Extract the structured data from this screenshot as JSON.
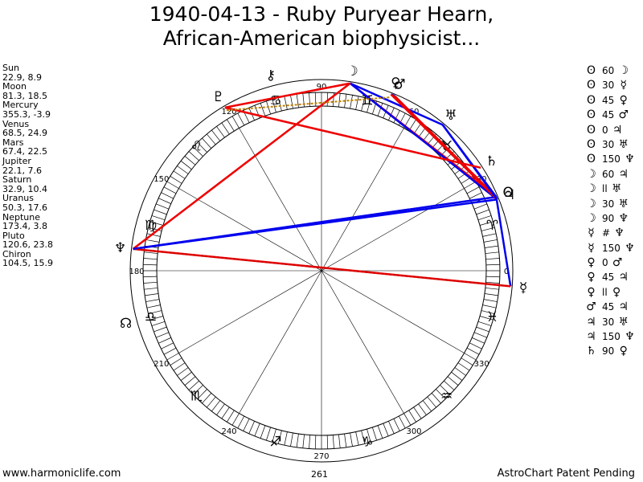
{
  "title_line1": "1940-04-13 - Ruby Puryear Hearn,",
  "title_line2": "African-American biophysicist...",
  "positions": [
    {
      "name": "Sun",
      "values": "22.9, 8.9"
    },
    {
      "name": "Moon",
      "values": "81.3, 18.5"
    },
    {
      "name": "Mercury",
      "values": "355.3, -3.9"
    },
    {
      "name": "Venus",
      "values": "68.5, 24.9"
    },
    {
      "name": "Mars",
      "values": "67.4, 22.5"
    },
    {
      "name": "Jupiter",
      "values": "22.1, 7.6"
    },
    {
      "name": "Saturn",
      "values": "32.9, 10.4"
    },
    {
      "name": "Uranus",
      "values": "50.3, 17.6"
    },
    {
      "name": "Neptune",
      "values": "173.4, 3.8"
    },
    {
      "name": "Pluto",
      "values": "120.6, 23.8"
    },
    {
      "name": "Chiron",
      "values": "104.5, 15.9"
    }
  ],
  "aspects": [
    {
      "p1": "ʘ",
      "angle": "60",
      "p2": "☽"
    },
    {
      "p1": "ʘ",
      "angle": "30",
      "p2": "☿"
    },
    {
      "p1": "ʘ",
      "angle": "45",
      "p2": "♀"
    },
    {
      "p1": "ʘ",
      "angle": "45",
      "p2": "♂"
    },
    {
      "p1": "ʘ",
      "angle": "0",
      "p2": "♃"
    },
    {
      "p1": "ʘ",
      "angle": "30",
      "p2": "♅"
    },
    {
      "p1": "ʘ",
      "angle": "150",
      "p2": "♆"
    },
    {
      "p1": "☽",
      "angle": "60",
      "p2": "♃"
    },
    {
      "p1": "☽",
      "angle": "ll",
      "p2": "♅"
    },
    {
      "p1": "☽",
      "angle": "30",
      "p2": "♅"
    },
    {
      "p1": "☽",
      "angle": "90",
      "p2": "♆"
    },
    {
      "p1": "☿",
      "angle": "#",
      "p2": "♆"
    },
    {
      "p1": "☿",
      "angle": "150",
      "p2": "♆"
    },
    {
      "p1": "♀",
      "angle": "0",
      "p2": "♂"
    },
    {
      "p1": "♀",
      "angle": "45",
      "p2": "♃"
    },
    {
      "p1": "♀",
      "angle": "ll",
      "p2": "♀"
    },
    {
      "p1": "♂",
      "angle": "45",
      "p2": "♃"
    },
    {
      "p1": "♃",
      "angle": "30",
      "p2": "♅"
    },
    {
      "p1": "♃",
      "angle": "150",
      "p2": "♆"
    },
    {
      "p1": "♄",
      "angle": "90",
      "p2": "♀"
    }
  ],
  "wheel": {
    "degree_labels": [
      {
        "text": "0",
        "deg": 0
      },
      {
        "text": "30",
        "deg": 30
      },
      {
        "text": "60",
        "deg": 60
      },
      {
        "text": "90",
        "deg": 90
      },
      {
        "text": "120",
        "deg": 120
      },
      {
        "text": "150",
        "deg": 150
      },
      {
        "text": "180",
        "deg": 180
      },
      {
        "text": "210",
        "deg": 210
      },
      {
        "text": "240",
        "deg": 240
      },
      {
        "text": "270",
        "deg": 270
      },
      {
        "text": "300",
        "deg": 300
      },
      {
        "text": "330",
        "deg": 330
      }
    ],
    "sign_glyphs": [
      {
        "glyph": "♈",
        "deg": 15
      },
      {
        "glyph": "♉",
        "deg": 45
      },
      {
        "glyph": "♊",
        "deg": 75
      },
      {
        "glyph": "♋",
        "deg": 105
      },
      {
        "glyph": "♌",
        "deg": 135
      },
      {
        "glyph": "♍",
        "deg": 165
      },
      {
        "glyph": "♎",
        "deg": 195
      },
      {
        "glyph": "♏",
        "deg": 225
      },
      {
        "glyph": "♐",
        "deg": 255
      },
      {
        "glyph": "♑",
        "deg": 285
      },
      {
        "glyph": "♒",
        "deg": 315
      },
      {
        "glyph": "♓",
        "deg": 345
      }
    ],
    "planets": [
      {
        "name": "Sun",
        "glyph": "ʘ",
        "lon": 22.9
      },
      {
        "name": "Moon",
        "glyph": "☽",
        "lon": 81.3
      },
      {
        "name": "Mercury",
        "glyph": "☿",
        "lon": 355.3
      },
      {
        "name": "Venus",
        "glyph": "♀",
        "lon": 68.5
      },
      {
        "name": "Mars",
        "glyph": "♂",
        "lon": 67.4
      },
      {
        "name": "Jupiter",
        "glyph": "♃",
        "lon": 22.1
      },
      {
        "name": "Saturn",
        "glyph": "♄",
        "lon": 32.9
      },
      {
        "name": "Uranus",
        "glyph": "♅",
        "lon": 50.3
      },
      {
        "name": "Neptune",
        "glyph": "♆",
        "lon": 173.4
      },
      {
        "name": "Pluto",
        "glyph": "♇",
        "lon": 120.6
      },
      {
        "name": "Chiron",
        "glyph": "⚷",
        "lon": 104.5
      },
      {
        "name": "Node",
        "glyph": "☊",
        "lon": 195
      }
    ],
    "aspect_lines": [
      {
        "from": "Sun",
        "to": "Moon",
        "color": "#ee0000"
      },
      {
        "from": "Sun",
        "to": "Mercury",
        "color": "#0000ee"
      },
      {
        "from": "Sun",
        "to": "Venus",
        "color": "#ee0000"
      },
      {
        "from": "Sun",
        "to": "Mars",
        "color": "#ee0000"
      },
      {
        "from": "Sun",
        "to": "Uranus",
        "color": "#0000ee"
      },
      {
        "from": "Sun",
        "to": "Neptune",
        "color": "#0000ee"
      },
      {
        "from": "Moon",
        "to": "Jupiter",
        "color": "#0000ee"
      },
      {
        "from": "Moon",
        "to": "Uranus",
        "color": "#0000ee"
      },
      {
        "from": "Moon",
        "to": "Neptune",
        "color": "#ee0000"
      },
      {
        "from": "Mercury",
        "to": "Neptune",
        "color": "#ee0000"
      },
      {
        "from": "Venus",
        "to": "Mars",
        "color": "#0000ee"
      },
      {
        "from": "Venus",
        "to": "Jupiter",
        "color": "#ee0000"
      },
      {
        "from": "Mars",
        "to": "Jupiter",
        "color": "#ee0000"
      },
      {
        "from": "Jupiter",
        "to": "Uranus",
        "color": "#0000ee"
      },
      {
        "from": "Jupiter",
        "to": "Neptune",
        "color": "#0000ee"
      },
      {
        "from": "Saturn",
        "to": "Pluto",
        "color": "#ee0000"
      },
      {
        "from": "Moon",
        "to": "Pluto",
        "color": "#ee0000"
      }
    ],
    "dotted_lines": [
      {
        "from": "Mercury",
        "to": "Neptune",
        "color": "#cc0000"
      },
      {
        "from": "Pluto",
        "to": "Venus",
        "color": "#c08000"
      }
    ]
  },
  "footer": {
    "left": "www.harmoniclife.com",
    "right": "AstroChart Patent Pending",
    "center": "261"
  },
  "colors": {
    "red": "#ee0000",
    "blue": "#0000ee",
    "ring": "#000000"
  }
}
